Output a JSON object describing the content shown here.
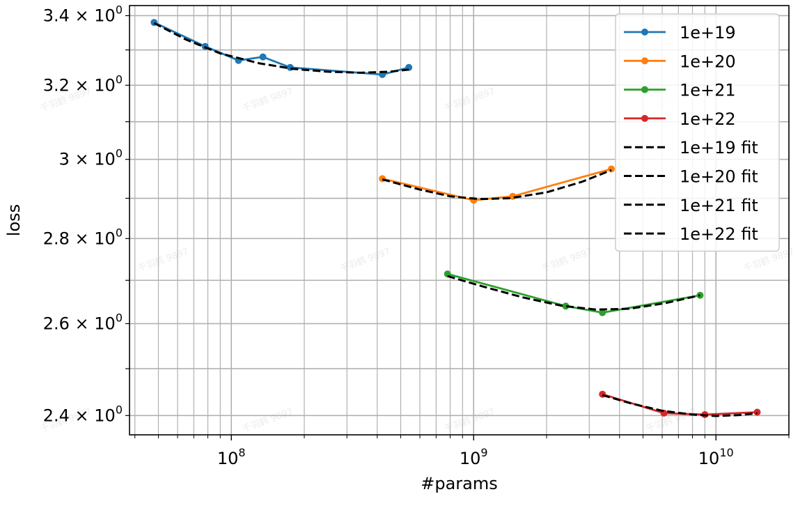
{
  "chart_data": {
    "type": "line",
    "xlabel": "#params",
    "ylabel": "loss",
    "xscale": "log",
    "yscale": "log",
    "xlim": [
      38000000.0,
      20000000000.0
    ],
    "ylim": [
      2.36,
      3.43
    ],
    "grid": true,
    "legend_position": "top-right",
    "x_ticks": [
      {
        "value": 100000000.0,
        "base": "10",
        "exp": "8"
      },
      {
        "value": 1000000000.0,
        "base": "10",
        "exp": "9"
      },
      {
        "value": 10000000000.0,
        "base": "10",
        "exp": "10"
      }
    ],
    "y_ticks": [
      {
        "value": 3.4,
        "mant": "3.4 × 10",
        "exp": "0"
      },
      {
        "value": 3.2,
        "mant": "3.2 × 10",
        "exp": "0"
      },
      {
        "value": 3.0,
        "mant": "3 × 10",
        "exp": "0"
      },
      {
        "value": 2.8,
        "mant": "2.8 × 10",
        "exp": "0"
      },
      {
        "value": 2.6,
        "mant": "2.6 × 10",
        "exp": "0"
      },
      {
        "value": 2.4,
        "mant": "2.4 × 10",
        "exp": "0"
      }
    ],
    "series": [
      {
        "name": "1e+19",
        "color": "#1f77b4",
        "x": [
          48000000.0,
          78000000.0,
          107000000.0,
          135000000.0,
          175000000.0,
          420000000.0,
          540000000.0
        ],
        "y": [
          3.38,
          3.31,
          3.27,
          3.28,
          3.25,
          3.23,
          3.25
        ]
      },
      {
        "name": "1e+20",
        "color": "#ff7f0e",
        "x": [
          420000000.0,
          1000000000.0,
          1450000000.0,
          3700000000.0
        ],
        "y": [
          2.95,
          2.895,
          2.905,
          2.975
        ]
      },
      {
        "name": "1e+21",
        "color": "#2ca02c",
        "x": [
          780000000.0,
          2400000000.0,
          3400000000.0,
          8600000000.0
        ],
        "y": [
          2.715,
          2.64,
          2.625,
          2.665
        ]
      },
      {
        "name": "1e+22",
        "color": "#d62728",
        "x": [
          3400000000.0,
          6100000000.0,
          9000000000.0,
          14800000000.0
        ],
        "y": [
          2.445,
          2.405,
          2.402,
          2.407
        ]
      }
    ],
    "fits": [
      {
        "name": "1e+19 fit",
        "color": "#000000",
        "x": [
          48000000.0,
          65000000.0,
          90000000.0,
          130000000.0,
          180000000.0,
          250000000.0,
          340000000.0,
          450000000.0,
          540000000.0
        ],
        "y": [
          3.378,
          3.33,
          3.29,
          3.262,
          3.246,
          3.238,
          3.235,
          3.238,
          3.244
        ]
      },
      {
        "name": "1e+20 fit",
        "color": "#000000",
        "x": [
          420000000.0,
          600000000.0,
          800000000.0,
          1050000000.0,
          1400000000.0,
          2000000000.0,
          2800000000.0,
          3700000000.0
        ],
        "y": [
          2.948,
          2.922,
          2.905,
          2.898,
          2.9,
          2.915,
          2.942,
          2.972
        ]
      },
      {
        "name": "1e+21 fit",
        "color": "#000000",
        "x": [
          780000000.0,
          1100000000.0,
          1600000000.0,
          2300000000.0,
          3200000000.0,
          4400000000.0,
          6200000000.0,
          8600000000.0
        ],
        "y": [
          2.71,
          2.685,
          2.66,
          2.641,
          2.632,
          2.634,
          2.647,
          2.665
        ]
      },
      {
        "name": "1e+22 fit",
        "color": "#000000",
        "x": [
          3400000000.0,
          4500000000.0,
          6000000000.0,
          8000000000.0,
          10000000000.0,
          12500000000.0,
          14800000000.0
        ],
        "y": [
          2.443,
          2.425,
          2.41,
          2.402,
          2.399,
          2.401,
          2.405
        ]
      }
    ]
  }
}
